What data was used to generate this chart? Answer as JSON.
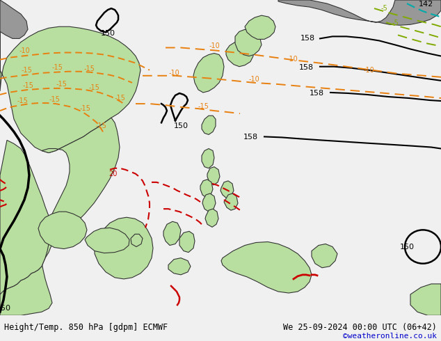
{
  "title_left": "Height/Temp. 850 hPa [gdpm] ECMWF",
  "title_right": "We 25-09-2024 00:00 UTC (06+42)",
  "title_right2": "©weatheronline.co.uk",
  "fig_width": 6.34,
  "fig_height": 4.9,
  "dpi": 100,
  "ocean_color": "#cdd5dd",
  "land_green": "#b8dfa0",
  "land_grey": "#989898",
  "black_line_color": "#000000",
  "orange_color": "#e88010",
  "green_color": "#80aa00",
  "red_color": "#cc0000",
  "cyan_color": "#00aaaa",
  "bottom_bg": "#f0f0f0",
  "bottom_text": "#000000",
  "bottom_link": "#0000cc"
}
